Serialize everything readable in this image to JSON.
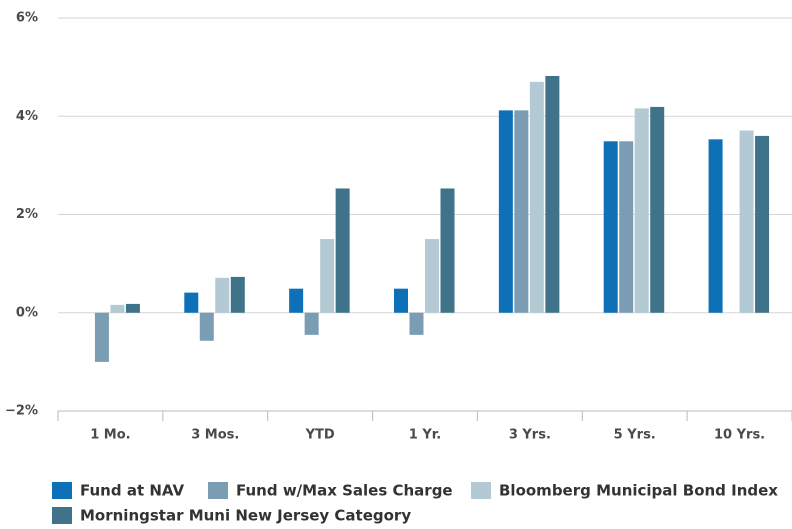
{
  "chart_data": {
    "type": "bar",
    "categories": [
      "1 Mo.",
      "3 Mos.",
      "YTD",
      "1 Yr.",
      "3 Yrs.",
      "5 Yrs.",
      "10 Yrs."
    ],
    "series": [
      {
        "name": "Fund at NAV",
        "color": "#0e71b8",
        "values": [
          0,
          0.41,
          0.49,
          0.49,
          4.12,
          3.49,
          3.53
        ]
      },
      {
        "name": "Fund w/Max Sales Charge",
        "color": "#7a9db3",
        "values": [
          -1.0,
          -0.57,
          -0.45,
          -0.45,
          4.12,
          3.49,
          null
        ]
      },
      {
        "name": "Bloomberg Municipal Bond Index",
        "color": "#b3c9d4",
        "values": [
          0.16,
          0.71,
          1.5,
          1.5,
          4.7,
          4.16,
          3.71
        ]
      },
      {
        "name": "Morningstar Muni New Jersey Category",
        "color": "#3f7389",
        "values": [
          0.18,
          0.73,
          2.53,
          2.53,
          4.82,
          4.19,
          3.6
        ]
      }
    ],
    "ylim": [
      -2,
      6
    ],
    "yticks": [
      {
        "value": -2,
        "label": "−2%"
      },
      {
        "value": 0,
        "label": "0%"
      },
      {
        "value": 2,
        "label": "2%"
      },
      {
        "value": 4,
        "label": "4%"
      },
      {
        "value": 6,
        "label": "6%"
      }
    ],
    "grid": true
  }
}
